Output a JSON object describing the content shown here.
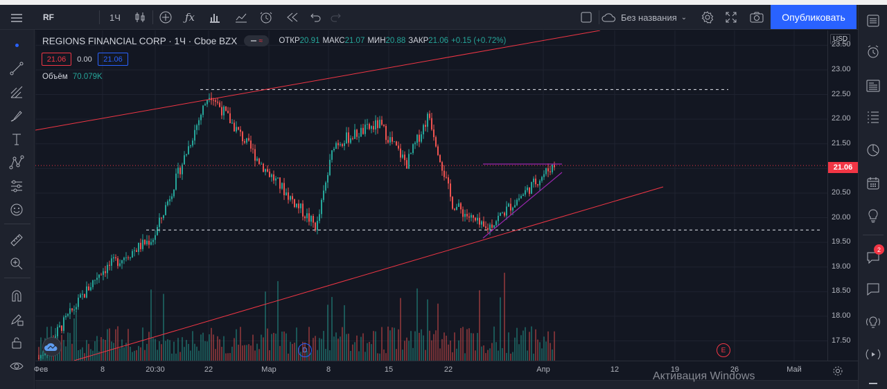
{
  "toolbar": {
    "symbol": "RF",
    "interval": "1Ч",
    "layout_name": "Без названия",
    "publish_label": "Опубликовать",
    "icons": [
      "menu-icon",
      "bar-style-icon",
      "plus-circle-icon",
      "fx-icon",
      "indicators-icon",
      "templates-icon",
      "alert-icon",
      "replay-icon",
      "undo-icon",
      "redo-icon",
      "fullscreen-square-icon",
      "cloud-icon",
      "settings-icon",
      "expand-icon",
      "camera-icon"
    ]
  },
  "legend": {
    "title": "REGIONS FINANCIAL CORP · 1Ч · Cboe BZX",
    "open_label": "ОТКР",
    "open": "20.91",
    "high_label": "МАКС",
    "high": "21.07",
    "low_label": "МИН",
    "low": "20.88",
    "close_label": "ЗАКР",
    "close": "21.06",
    "change": "+0.15 (+0.72%)",
    "sell_price": "21.06",
    "spread": "0.00",
    "buy_price": "21.06",
    "volume_label": "Объём",
    "volume": "70.079K"
  },
  "price_axis": {
    "currency": "USD",
    "last_price": "21.06",
    "ticks": [
      "23.50",
      "23.00",
      "22.50",
      "22.00",
      "21.50",
      "21.00",
      "20.50",
      "20.00",
      "19.50",
      "19.00",
      "18.50",
      "18.00",
      "17.50"
    ]
  },
  "time_axis": {
    "ticks": [
      "Фев",
      "8",
      "20:30",
      "22",
      "Мар",
      "8",
      "15",
      "22",
      "Апр",
      "12",
      "19",
      "26",
      "Май"
    ]
  },
  "markers": {
    "dividend": "D",
    "earnings": "E"
  },
  "watermark": "Активация Windows",
  "colors": {
    "up": "#26a69a",
    "down": "#ef5350",
    "trendline": "#f23645",
    "triangle": "#9c27b0",
    "accent": "#2962ff",
    "background": "#131722"
  },
  "chart_data": {
    "type": "candlestick",
    "interval": "1Ч",
    "ylim": [
      17.1,
      23.8
    ],
    "price_ticks": [
      17.5,
      18.0,
      18.5,
      19.0,
      19.5,
      20.0,
      20.5,
      21.0,
      21.5,
      22.0,
      22.5,
      23.0,
      23.5
    ],
    "last": 21.06,
    "price_path": [
      [
        "Фев",
        17.15
      ],
      [
        "8",
        18.9
      ],
      [
        "20:30",
        19.6
      ],
      [
        "22",
        22.55
      ],
      [
        "Мар",
        21.0
      ],
      [
        "8",
        19.8
      ],
      [
        "8",
        21.5
      ],
      [
        "15",
        21.9
      ],
      [
        "15",
        21.1
      ],
      [
        "22",
        22.1
      ],
      [
        "22",
        20.3
      ],
      [
        "22",
        19.75
      ],
      [
        "Апр",
        21.06
      ]
    ],
    "horizontal_levels": [
      22.6,
      19.75
    ],
    "drawings": [
      "ascending channel (upper and lower trendlines)",
      "ascending triangle (resistance 21.1)"
    ]
  }
}
